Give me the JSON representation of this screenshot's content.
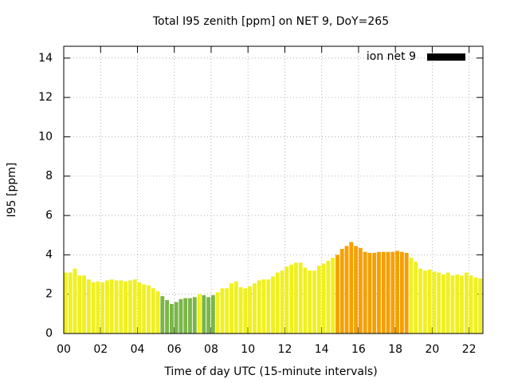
{
  "chart_data": {
    "type": "bar",
    "title": "Total I95 zenith [ppm] on NET 9, DoY=265",
    "xlabel": "Time of day UTC (15-minute intervals)",
    "ylabel": "I95 [ppm]",
    "xlim": [
      0,
      22.75
    ],
    "ylim": [
      0,
      14.6
    ],
    "xticks": [
      {
        "value": 0,
        "label": "00"
      },
      {
        "value": 2,
        "label": "02"
      },
      {
        "value": 4,
        "label": "04"
      },
      {
        "value": 6,
        "label": "06"
      },
      {
        "value": 8,
        "label": "08"
      },
      10,
      12,
      14,
      16,
      18,
      20,
      22
    ],
    "yticks": [
      0,
      2,
      4,
      6,
      8,
      10,
      12,
      14
    ],
    "grid": true,
    "legend": "top-right",
    "x": [
      0,
      0.25,
      0.5,
      0.75,
      1,
      1.25,
      1.5,
      1.75,
      2,
      2.25,
      2.5,
      2.75,
      3,
      3.25,
      3.5,
      3.75,
      4,
      4.25,
      4.5,
      4.75,
      5,
      5.25,
      5.5,
      5.75,
      6,
      6.25,
      6.5,
      6.75,
      7,
      7.25,
      7.5,
      7.75,
      8,
      8.25,
      8.5,
      8.75,
      9,
      9.25,
      9.5,
      9.75,
      10,
      10.25,
      10.5,
      10.75,
      11,
      11.25,
      11.5,
      11.75,
      12,
      12.25,
      12.5,
      12.75,
      13,
      13.25,
      13.5,
      13.75,
      14,
      14.25,
      14.5,
      14.75,
      15,
      15.25,
      15.5,
      15.75,
      16,
      16.25,
      16.5,
      16.75,
      17,
      17.25,
      17.5,
      17.75,
      18,
      18.25,
      18.5,
      18.75,
      19,
      19.25,
      19.5,
      19.75,
      20,
      20.25,
      20.5,
      20.75,
      21,
      21.25,
      21.5,
      21.75,
      22,
      22.25,
      22.5
    ],
    "series": [
      {
        "name": "ion net 9",
        "color": "#000000",
        "values": [
          3.1,
          3.1,
          3.3,
          2.95,
          2.95,
          2.75,
          2.6,
          2.65,
          2.6,
          2.7,
          2.75,
          2.7,
          2.7,
          2.65,
          2.7,
          2.75,
          2.6,
          2.5,
          2.45,
          2.3,
          2.15,
          1.9,
          1.7,
          1.5,
          1.6,
          1.75,
          1.8,
          1.8,
          1.85,
          2.0,
          1.95,
          1.85,
          1.95,
          2.1,
          2.3,
          2.3,
          2.55,
          2.65,
          2.35,
          2.3,
          2.4,
          2.55,
          2.7,
          2.75,
          2.75,
          2.9,
          3.1,
          3.2,
          3.4,
          3.5,
          3.6,
          3.6,
          3.35,
          3.2,
          3.2,
          3.45,
          3.55,
          3.7,
          3.85,
          4.0,
          4.3,
          4.45,
          4.65,
          4.45,
          4.35,
          4.15,
          4.1,
          4.1,
          4.15,
          4.15,
          4.15,
          4.15,
          4.2,
          4.15,
          4.1,
          3.85,
          3.65,
          3.3,
          3.2,
          3.25,
          3.15,
          3.1,
          3.0,
          3.1,
          2.95,
          3.0,
          2.95,
          3.1,
          2.95,
          2.85,
          2.8
        ],
        "bar_colors": [
          "#f0f020",
          "#f0f020",
          "#f0f020",
          "#f0f020",
          "#f0f020",
          "#f0f020",
          "#f0f020",
          "#f0f020",
          "#f0f020",
          "#f0f020",
          "#f0f020",
          "#f0f020",
          "#f0f020",
          "#f0f020",
          "#f0f020",
          "#f0f020",
          "#f0f020",
          "#f0f020",
          "#f0f020",
          "#f0f020",
          "#f0f020",
          "#7ab648",
          "#7ab648",
          "#7ab648",
          "#7ab648",
          "#7ab648",
          "#7ab648",
          "#7ab648",
          "#7ab648",
          "#f0f020",
          "#7ab648",
          "#7ab648",
          "#7ab648",
          "#f0f020",
          "#f0f020",
          "#f0f020",
          "#f0f020",
          "#f0f020",
          "#f0f020",
          "#f0f020",
          "#f0f020",
          "#f0f020",
          "#f0f020",
          "#f0f020",
          "#f0f020",
          "#f0f020",
          "#f0f020",
          "#f0f020",
          "#f0f020",
          "#f0f020",
          "#f0f020",
          "#f0f020",
          "#f0f020",
          "#f0f020",
          "#f0f020",
          "#f0f020",
          "#f0f020",
          "#f0f020",
          "#f0f020",
          "#f5a000",
          "#f5a000",
          "#f5a000",
          "#f5a000",
          "#f5a000",
          "#f5a000",
          "#f5a000",
          "#f5a000",
          "#f5a000",
          "#f5a000",
          "#f5a000",
          "#f5a000",
          "#f5a000",
          "#f5a000",
          "#f5a000",
          "#f5a000",
          "#f0f020",
          "#f0f020",
          "#f0f020",
          "#f0f020",
          "#f0f020",
          "#f0f020",
          "#f0f020",
          "#f0f020",
          "#f0f020",
          "#f0f020",
          "#f0f020",
          "#f0f020",
          "#f0f020",
          "#f0f020",
          "#f0f020",
          "#f0f020"
        ]
      }
    ]
  }
}
